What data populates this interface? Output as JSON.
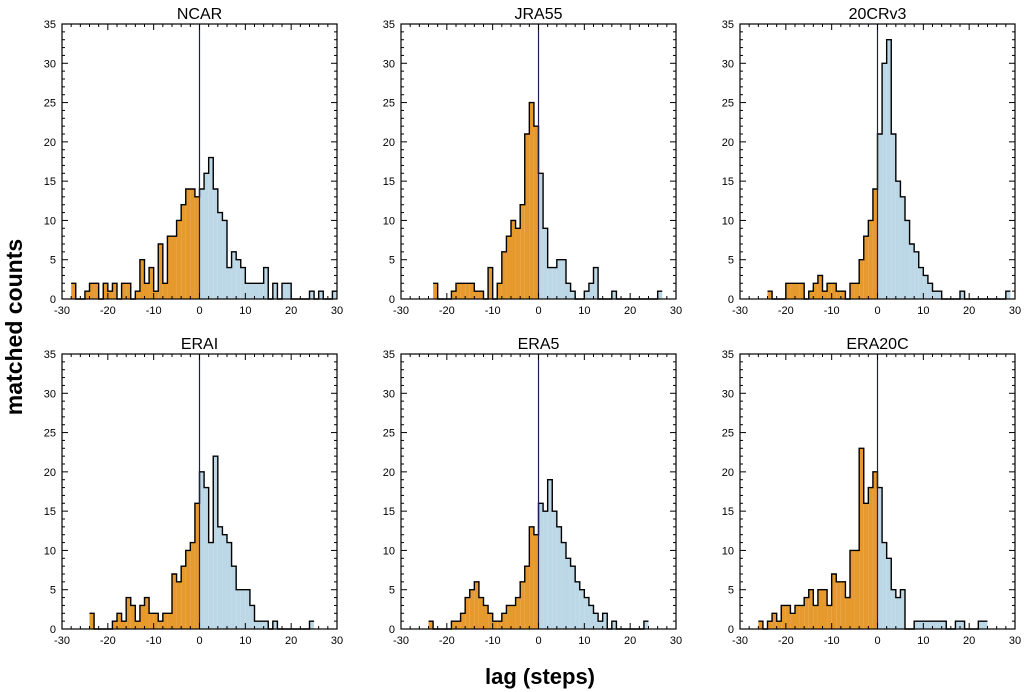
{
  "chart_data": {
    "type": "histogram",
    "ylabel": "matched counts",
    "xlabel": "lag (steps)",
    "xlim": [
      -30,
      30
    ],
    "ylim": [
      0,
      35
    ],
    "xticks": [
      -30,
      -20,
      -10,
      0,
      10,
      20,
      30
    ],
    "yticks": [
      0,
      5,
      10,
      15,
      20,
      25,
      30,
      35
    ],
    "bin_width": 1,
    "colors": {
      "negative": "#E69A2E",
      "positive": "#BCD7E6",
      "outline": "#000000",
      "zero_line": "#1E1E50"
    },
    "panels": [
      {
        "title": "NCAR",
        "bins_start": -28,
        "counts": [
          2,
          0,
          0,
          1,
          2,
          2,
          0,
          2,
          1,
          2,
          0,
          2,
          2,
          0,
          1,
          5,
          2,
          4,
          1,
          7,
          2,
          8,
          8,
          10,
          12,
          14,
          14,
          13,
          14,
          16,
          18,
          14,
          11,
          10,
          4,
          6,
          5,
          4,
          2,
          2,
          2,
          2,
          4,
          0,
          2,
          0,
          2,
          2,
          0,
          0,
          0,
          0,
          1,
          0,
          1,
          0,
          0,
          1
        ]
      },
      {
        "title": "JRA55",
        "bins_start": -23,
        "counts": [
          2,
          0,
          0,
          0,
          1,
          2,
          2,
          2,
          2,
          1,
          1,
          0,
          4,
          0,
          2,
          6,
          8,
          10,
          9,
          12,
          21,
          25,
          22,
          16,
          9,
          4,
          4,
          5,
          5,
          2,
          1,
          0,
          0,
          1,
          2,
          4,
          0,
          0,
          0,
          1,
          0,
          0,
          0,
          0,
          0,
          0,
          0,
          0,
          0,
          1
        ]
      },
      {
        "title": "20CRv3",
        "bins_start": -24,
        "counts": [
          1,
          0,
          0,
          0,
          2,
          2,
          2,
          2,
          0,
          1,
          2,
          3,
          1,
          2,
          2,
          1,
          1,
          0,
          2,
          2,
          5,
          8,
          10,
          14,
          21,
          30,
          33,
          21,
          15,
          13,
          10,
          7,
          6,
          4,
          3,
          2,
          1,
          1,
          0,
          0,
          0,
          0,
          1,
          0,
          0,
          0,
          0,
          0,
          0,
          0,
          0,
          0,
          1
        ]
      },
      {
        "title": "ERAI",
        "bins_start": -24,
        "counts": [
          2,
          0,
          0,
          0,
          0,
          1,
          2,
          1,
          4,
          3,
          1,
          3,
          4,
          2,
          2,
          1,
          2,
          2,
          7,
          6,
          8,
          10,
          11,
          16,
          20,
          18,
          11,
          22,
          13,
          12,
          11,
          8,
          5,
          5,
          5,
          3,
          1,
          1,
          1,
          0,
          1,
          0,
          0,
          0,
          0,
          0,
          0,
          0,
          1
        ]
      },
      {
        "title": "ERA5",
        "bins_start": -24,
        "counts": [
          1,
          0,
          0,
          0,
          0,
          1,
          1,
          2,
          4,
          5,
          6,
          4,
          3,
          2,
          1,
          1,
          2,
          3,
          3,
          4,
          6,
          8,
          13,
          12,
          16,
          15,
          19,
          15,
          13,
          11,
          9,
          8,
          6,
          5,
          4,
          3,
          2,
          1,
          2,
          0,
          1,
          0,
          0,
          0,
          0,
          0,
          0,
          1
        ]
      },
      {
        "title": "ERA20C",
        "bins_start": -26,
        "counts": [
          1,
          0,
          1,
          2,
          1,
          3,
          3,
          2,
          3,
          3,
          4,
          5,
          3,
          5,
          5,
          3,
          7,
          6,
          6,
          4,
          10,
          10,
          23,
          16,
          18,
          20,
          18,
          11,
          9,
          5,
          4,
          5,
          0,
          0,
          1,
          1,
          1,
          1,
          1,
          1,
          1,
          0,
          0,
          1,
          1,
          0,
          0,
          0,
          1,
          1
        ]
      }
    ]
  }
}
